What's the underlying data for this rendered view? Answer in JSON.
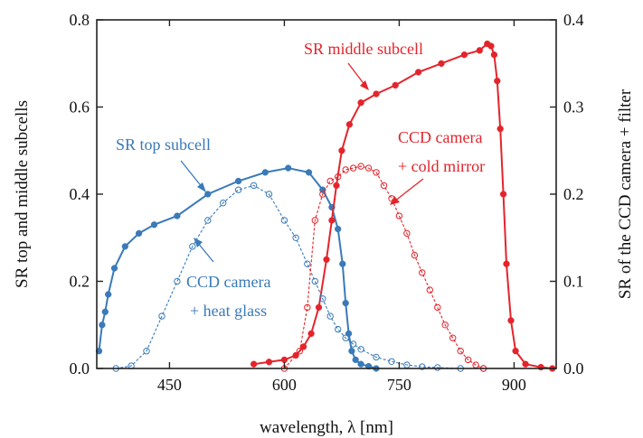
{
  "chart_data": {
    "type": "line",
    "xlabel": "wavelength, λ [nm]",
    "ylabel_left": "SR top and middle subcells",
    "ylabel_right": "SR of the CCD camera + filter",
    "xlim": [
      355,
      955
    ],
    "ylim_left": [
      0,
      0.8
    ],
    "ylim_right": [
      0,
      0.4
    ],
    "x_ticks": [
      450,
      600,
      750,
      900
    ],
    "y_left_ticks": [
      0.0,
      0.2,
      0.4,
      0.6,
      0.8
    ],
    "y_right_ticks": [
      0.0,
      0.1,
      0.2,
      0.3,
      0.4
    ],
    "colors": {
      "blue": "#3a7ab8",
      "red": "#e4242b",
      "axis": "#222222"
    },
    "series": [
      {
        "name": "SR top subcell",
        "axis": "left",
        "style": "filled-dots",
        "color": "#3a7ab8",
        "x": [
          358,
          362,
          366,
          370,
          378,
          392,
          410,
          430,
          460,
          500,
          540,
          575,
          605,
          632,
          650,
          662,
          670,
          676,
          680,
          684,
          688,
          693,
          700,
          710,
          720
        ],
        "y": [
          0.04,
          0.1,
          0.13,
          0.17,
          0.23,
          0.28,
          0.31,
          0.33,
          0.35,
          0.4,
          0.43,
          0.45,
          0.46,
          0.45,
          0.41,
          0.37,
          0.32,
          0.24,
          0.15,
          0.08,
          0.04,
          0.02,
          0.01,
          0.005,
          0.0
        ]
      },
      {
        "name": "SR middle subcell",
        "axis": "left",
        "style": "filled-dots",
        "color": "#e4242b",
        "x": [
          560,
          580,
          600,
          615,
          625,
          635,
          645,
          655,
          662,
          668,
          675,
          685,
          700,
          720,
          745,
          775,
          805,
          835,
          855,
          865,
          870,
          874,
          878,
          882,
          886,
          890,
          896,
          902,
          915,
          935,
          950
        ],
        "y": [
          0.01,
          0.015,
          0.02,
          0.03,
          0.05,
          0.08,
          0.14,
          0.25,
          0.34,
          0.42,
          0.5,
          0.56,
          0.61,
          0.63,
          0.65,
          0.68,
          0.7,
          0.72,
          0.73,
          0.745,
          0.74,
          0.72,
          0.66,
          0.55,
          0.4,
          0.24,
          0.11,
          0.04,
          0.01,
          0.003,
          0.0
        ]
      },
      {
        "name": "CCD camera + heat glass",
        "axis": "right",
        "style": "open-circles",
        "color": "#3a7ab8",
        "x": [
          380,
          400,
          420,
          440,
          460,
          480,
          500,
          520,
          540,
          560,
          580,
          600,
          615,
          630,
          640,
          650,
          660,
          670,
          680,
          690,
          700,
          720,
          740,
          760,
          780,
          800,
          830,
          860
        ],
        "y": [
          0.0,
          0.003,
          0.02,
          0.06,
          0.1,
          0.14,
          0.17,
          0.19,
          0.205,
          0.21,
          0.2,
          0.17,
          0.15,
          0.12,
          0.1,
          0.08,
          0.06,
          0.045,
          0.035,
          0.028,
          0.022,
          0.013,
          0.008,
          0.004,
          0.002,
          0.001,
          0.0,
          0.0
        ]
      },
      {
        "name": "CCD camera + cold mirror",
        "axis": "right",
        "style": "open-circles",
        "color": "#e4242b",
        "x": [
          600,
          620,
          630,
          640,
          650,
          660,
          670,
          680,
          690,
          700,
          710,
          720,
          730,
          740,
          750,
          760,
          770,
          780,
          790,
          800,
          810,
          820,
          830,
          840,
          850,
          860
        ],
        "y": [
          0.0,
          0.02,
          0.07,
          0.17,
          0.2,
          0.215,
          0.22,
          0.228,
          0.23,
          0.232,
          0.23,
          0.225,
          0.21,
          0.195,
          0.175,
          0.155,
          0.13,
          0.11,
          0.09,
          0.07,
          0.05,
          0.035,
          0.02,
          0.01,
          0.004,
          0.0
        ]
      }
    ],
    "annotations": [
      {
        "text": "SR top subcell",
        "color": "#3a7ab8"
      },
      {
        "text": "SR middle subcell",
        "color": "#e4242b"
      },
      {
        "text": "CCD camera",
        "color": "#3a7ab8"
      },
      {
        "text": "+ heat glass",
        "color": "#3a7ab8"
      },
      {
        "text": "CCD camera",
        "color": "#e4242b"
      },
      {
        "text": "+ cold mirror",
        "color": "#e4242b"
      }
    ]
  }
}
